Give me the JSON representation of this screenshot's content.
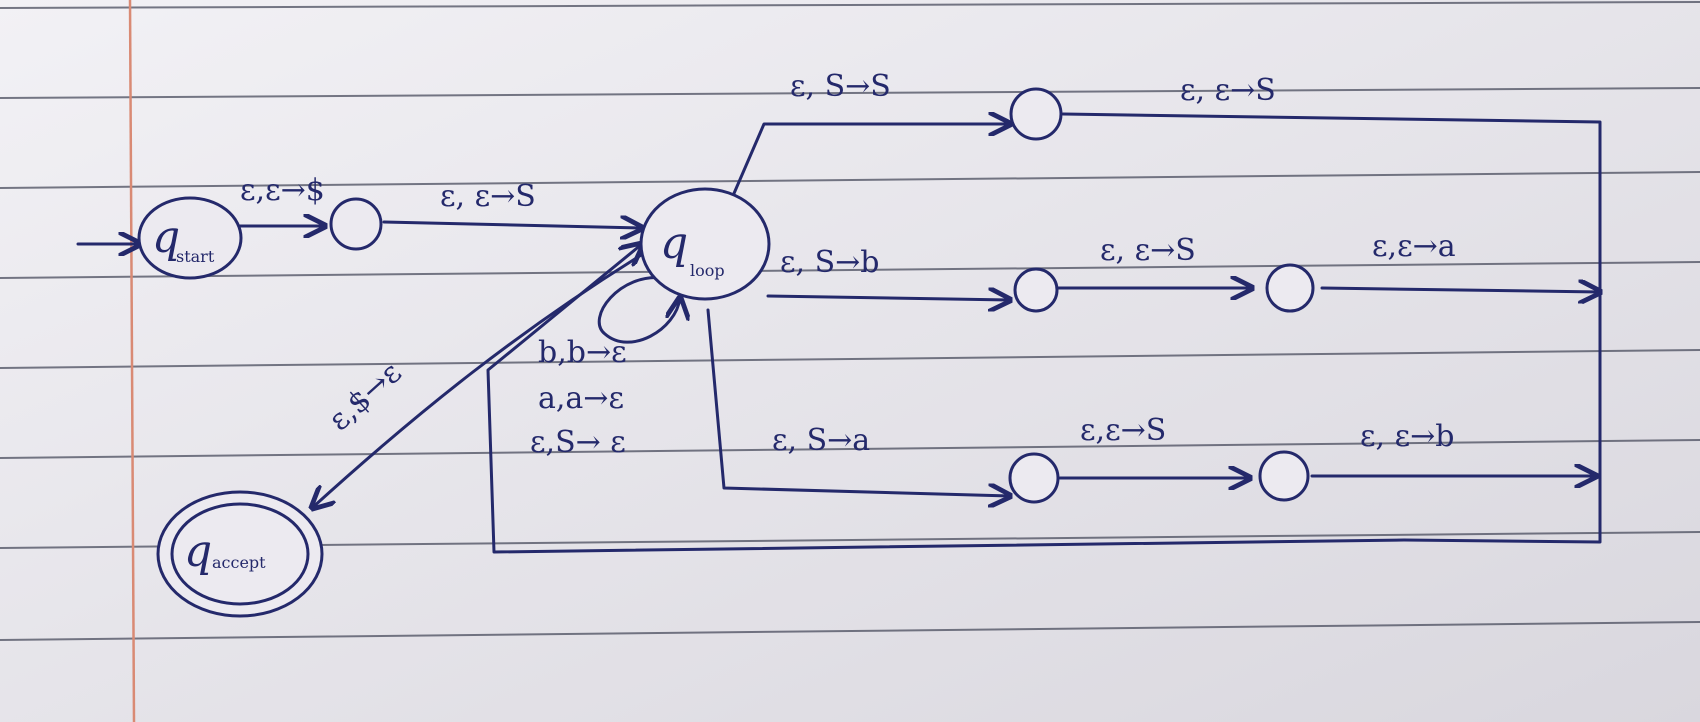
{
  "states": {
    "start": "q",
    "start_sub": "start",
    "loop": "q",
    "loop_sub": "loop",
    "accept": "q",
    "accept_sub": "accept"
  },
  "transitions": {
    "start_push": "ε,ε→$",
    "push_s": "ε, ε→S",
    "upper_branch": "ε, S→S",
    "upper_branch_2": "ε, ε→S",
    "middle_branch": "ε, S→b",
    "middle_branch_2": "ε, ε→S",
    "middle_branch_3": "ε,ε→a",
    "lower_branch": "ε, S→a",
    "lower_branch_2": "ε,ε→S",
    "lower_branch_3": "ε, ε→b",
    "self_loop_1": "b,b→ε",
    "self_loop_2": "a,a→ε",
    "self_loop_3": "ε,S→ ε",
    "to_accept": "ε,$→ε"
  }
}
